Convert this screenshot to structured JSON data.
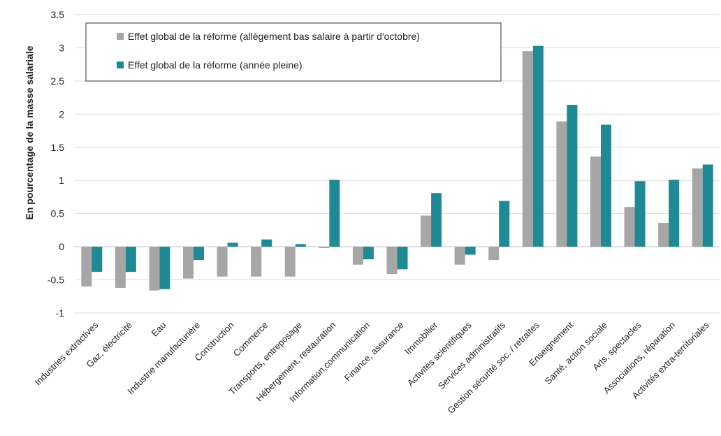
{
  "chart_data": {
    "type": "bar",
    "title": "",
    "xlabel": "",
    "ylabel": "En pourcentage de la masse salariale",
    "ylim": [
      -1,
      3.5
    ],
    "yticks": [
      -1,
      -0.5,
      0,
      0.5,
      1,
      1.5,
      2,
      2.5,
      3,
      3.5
    ],
    "ytick_labels": [
      "-1",
      "-0.5",
      "0",
      "0.5",
      "1",
      "1.5",
      "2",
      "2.5",
      "3",
      "3.5"
    ],
    "grid": true,
    "legend_position": "top-left",
    "categories": [
      "Industries extractives",
      "Gaz, électricité",
      "Eau",
      "Industrie manufacturière",
      "Construction",
      "Commerce",
      "Transports, entreposage",
      "Hébergement, restauration",
      "Information,communication",
      "Finance, assurance",
      "Immobilier",
      "Activités scientifiques",
      "Services administratifs",
      "Gestion sécurité soc. / retraites",
      "Enseignement",
      "Santé, action sociale",
      "Arts, spectacles",
      "Associations, réparation",
      "Activités extra-territoriales"
    ],
    "series": [
      {
        "name": "Effet global de la réforme (allègement bas salaire à partir d'octobre)",
        "color": "#a6a6a6",
        "values": [
          -0.6,
          -0.62,
          -0.66,
          -0.48,
          -0.45,
          -0.45,
          -0.45,
          -0.02,
          -0.27,
          -0.41,
          0.47,
          -0.27,
          -0.2,
          2.95,
          1.89,
          1.36,
          0.6,
          0.36,
          1.18
        ]
      },
      {
        "name": "Effet global de la réforme (année pleine)",
        "color": "#1f8a94",
        "values": [
          -0.38,
          -0.38,
          -0.64,
          -0.2,
          0.06,
          0.11,
          0.04,
          1.01,
          -0.19,
          -0.34,
          0.81,
          -0.12,
          0.69,
          3.03,
          2.14,
          1.84,
          0.99,
          1.01,
          1.24
        ]
      }
    ]
  }
}
